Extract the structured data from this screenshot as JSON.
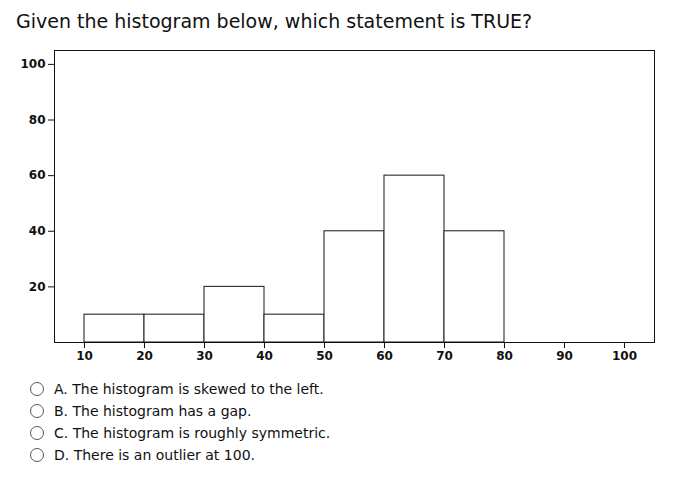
{
  "chart_data": {
    "type": "histogram",
    "title": "Given the histogram below, which statement is TRUE?",
    "bins": [
      10,
      20,
      30,
      40,
      50,
      60,
      70,
      80
    ],
    "values": [
      10,
      10,
      20,
      10,
      40,
      60,
      40
    ],
    "color": "#ffffff",
    "xlim": [
      5,
      105
    ],
    "xticks": [
      10,
      20,
      30,
      40,
      50,
      60,
      70,
      80,
      90,
      100
    ],
    "ylim": [
      0,
      105
    ],
    "yticks": [
      20,
      40,
      60,
      80,
      100
    ],
    "grid": false,
    "annotations": [
      "A. The histogram is skewed to the left.",
      "B. The histogram has a gap.",
      "C. The histogram is roughly symmetric.",
      "D. There is an outlier at 100."
    ]
  }
}
